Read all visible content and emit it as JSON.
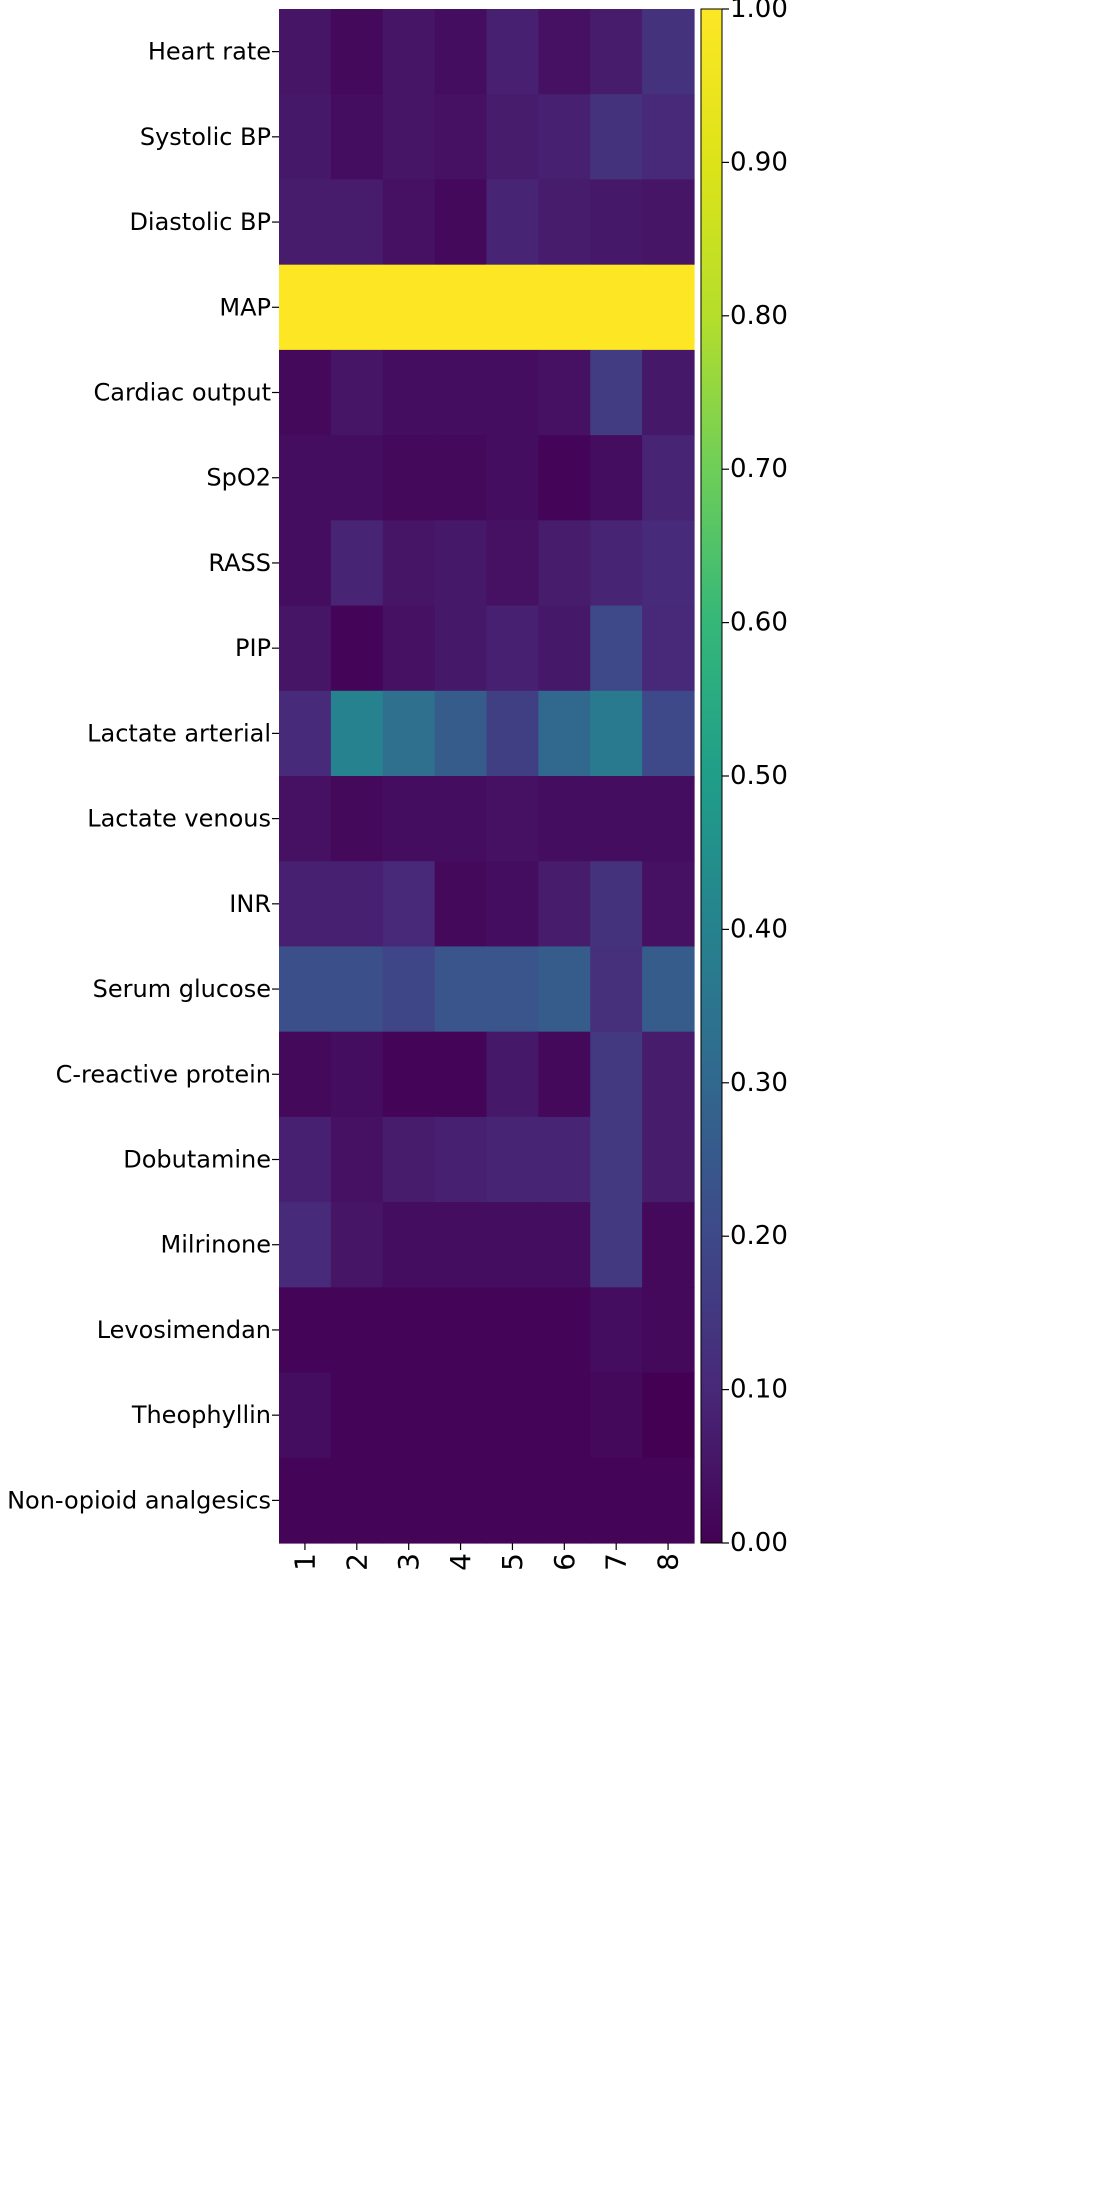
{
  "chart_data": {
    "type": "heatmap",
    "title": "",
    "xlabel": "",
    "ylabel": "",
    "x_categories": [
      "1",
      "2",
      "3",
      "4",
      "5",
      "6",
      "7",
      "8"
    ],
    "y_categories": [
      "Heart rate",
      "Systolic BP",
      "Diastolic BP",
      "MAP",
      "Cardiac output",
      "SpO2",
      "RASS",
      "PIP",
      "Lactate arterial",
      "Lactate venous",
      "INR",
      "Serum glucose",
      "C-reactive protein",
      "Dobutamine",
      "Milrinone",
      "Levosimendan",
      "Theophyllin",
      "Non-opioid analgesics"
    ],
    "values": [
      [
        0.05,
        0.02,
        0.05,
        0.03,
        0.08,
        0.04,
        0.07,
        0.13
      ],
      [
        0.06,
        0.03,
        0.05,
        0.04,
        0.07,
        0.08,
        0.13,
        0.1
      ],
      [
        0.07,
        0.07,
        0.04,
        0.02,
        0.09,
        0.07,
        0.06,
        0.05
      ],
      [
        1.0,
        1.0,
        1.0,
        1.0,
        1.0,
        1.0,
        1.0,
        1.0
      ],
      [
        0.02,
        0.05,
        0.03,
        0.03,
        0.03,
        0.04,
        0.16,
        0.06
      ],
      [
        0.03,
        0.03,
        0.02,
        0.02,
        0.03,
        0.01,
        0.03,
        0.09
      ],
      [
        0.03,
        0.09,
        0.05,
        0.06,
        0.04,
        0.07,
        0.09,
        0.11
      ],
      [
        0.05,
        0.01,
        0.04,
        0.06,
        0.08,
        0.06,
        0.2,
        0.1
      ],
      [
        0.11,
        0.4,
        0.33,
        0.26,
        0.17,
        0.3,
        0.37,
        0.2
      ],
      [
        0.04,
        0.02,
        0.03,
        0.03,
        0.04,
        0.03,
        0.03,
        0.03
      ],
      [
        0.08,
        0.08,
        0.1,
        0.02,
        0.03,
        0.07,
        0.13,
        0.04
      ],
      [
        0.22,
        0.22,
        0.19,
        0.24,
        0.24,
        0.26,
        0.12,
        0.26
      ],
      [
        0.02,
        0.03,
        0.01,
        0.01,
        0.06,
        0.02,
        0.15,
        0.07
      ],
      [
        0.08,
        0.04,
        0.07,
        0.08,
        0.09,
        0.09,
        0.15,
        0.07
      ],
      [
        0.11,
        0.05,
        0.03,
        0.03,
        0.03,
        0.03,
        0.15,
        0.02
      ],
      [
        0.01,
        0.01,
        0.01,
        0.01,
        0.01,
        0.01,
        0.03,
        0.02
      ],
      [
        0.03,
        0.01,
        0.01,
        0.01,
        0.01,
        0.01,
        0.02,
        0.0
      ],
      [
        0.01,
        0.01,
        0.01,
        0.01,
        0.01,
        0.01,
        0.01,
        0.01
      ]
    ],
    "colorbar": {
      "colormap": "viridis",
      "vmin": 0.0,
      "vmax": 1.0,
      "ticks": [
        0.0,
        0.1,
        0.2,
        0.3,
        0.4,
        0.5,
        0.6,
        0.7,
        0.8,
        0.9,
        1.0
      ],
      "tick_labels": [
        "0.00",
        "0.10",
        "0.20",
        "0.30",
        "0.40",
        "0.50",
        "0.60",
        "0.70",
        "0.80",
        "0.90",
        "1.00"
      ]
    },
    "grid": false,
    "legend": "colorbar-right"
  }
}
